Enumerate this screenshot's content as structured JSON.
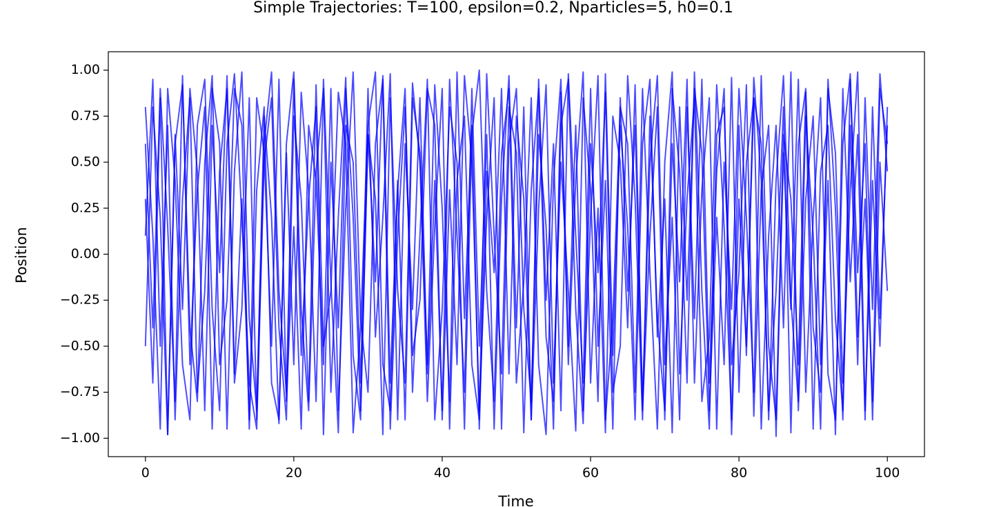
{
  "chart_data": {
    "type": "line",
    "title": "Simple Trajectories: T=100, epsilon=0.2, Nparticles=5, h0=0.1",
    "x_label": "Time",
    "y_label": "Position",
    "xlim": [
      -5,
      105
    ],
    "ylim": [
      -1.1,
      1.1
    ],
    "xticks": [
      0,
      20,
      40,
      60,
      80,
      100
    ],
    "yticks": [
      {
        "value": -1,
        "label": "−1.00"
      },
      {
        "value": -0.75,
        "label": "−0.75"
      },
      {
        "value": -0.5,
        "label": "−0.50"
      },
      {
        "value": -0.25,
        "label": "−0.25"
      },
      {
        "value": 0,
        "label": "0.00"
      },
      {
        "value": 0.25,
        "label": "0.25"
      },
      {
        "value": 0.5,
        "label": "0.50"
      },
      {
        "value": 0.75,
        "label": "0.75"
      },
      {
        "value": 1,
        "label": "1.00"
      }
    ],
    "grid": false,
    "opacity": 0.7,
    "x": [
      0,
      1,
      2,
      3,
      4,
      5,
      6,
      7,
      8,
      9,
      10,
      11,
      12,
      13,
      14,
      15,
      16,
      17,
      18,
      19,
      20,
      21,
      22,
      23,
      24,
      25,
      26,
      27,
      28,
      29,
      30,
      31,
      32,
      33,
      34,
      35,
      36,
      37,
      38,
      39,
      40,
      41,
      42,
      43,
      44,
      45,
      46,
      47,
      48,
      49,
      50,
      51,
      52,
      53,
      54,
      55,
      56,
      57,
      58,
      59,
      60,
      61,
      62,
      63,
      64,
      65,
      66,
      67,
      68,
      69,
      70,
      71,
      72,
      73,
      74,
      75,
      76,
      77,
      78,
      79,
      80,
      81,
      82,
      83,
      84,
      85,
      86,
      87,
      88,
      89,
      90,
      91,
      92,
      93,
      94,
      95,
      96,
      97,
      98,
      99,
      100
    ],
    "series": [
      {
        "color": "#0000ff",
        "values": [
          0.8,
          0.1,
          -0.95,
          0.9,
          0.4,
          -0.6,
          -0.9,
          0.7,
          0.95,
          -0.3,
          -0.85,
          0.6,
          0.98,
          0.2,
          -0.7,
          -0.95,
          0.5,
          0.85,
          -0.4,
          -0.9,
          0.75,
          0.3,
          -0.8,
          0.92,
          -0.5,
          -0.2,
          0.88,
          0.6,
          -0.97,
          -0.4,
          0.7,
          0.99,
          -0.6,
          -0.85,
          0.35,
          0.9,
          -0.75,
          0.1,
          0.95,
          -0.9,
          -0.3,
          0.8,
          0.5,
          -0.95,
          0.65,
          1.0,
          -0.2,
          -0.8,
          0.55,
          0.9,
          -0.7,
          -0.15,
          0.85,
          -0.6,
          -0.98,
          0.4,
          0.95,
          -0.5,
          0.7,
          -0.85,
          0.2,
          0.97,
          -0.9,
          -0.35,
          0.8,
          0.6,
          -0.75,
          0.9,
          -0.1,
          -0.95,
          0.5,
          0.99,
          -0.65,
          0.3,
          0.85,
          -0.8,
          -0.45,
          0.92,
          0.15,
          -0.9,
          0.7,
          -0.55,
          0.96,
          0.4,
          -0.85,
          -0.2,
          0.8,
          -0.97,
          0.6,
          0.9,
          -0.4,
          -0.75,
          0.95,
          0.25,
          -0.9,
          0.7,
          -0.6,
          0.85,
          -0.3,
          0.98,
          0.45
        ]
      },
      {
        "color": "#0000ff",
        "values": [
          0.3,
          -0.7,
          0.85,
          -0.98,
          0.6,
          0.92,
          -0.4,
          -0.8,
          0.5,
          0.97,
          -0.6,
          -0.25,
          0.9,
          0.7,
          -0.95,
          0.35,
          0.8,
          -0.7,
          -0.9,
          0.6,
          0.99,
          -0.3,
          -0.85,
          0.45,
          0.9,
          -0.75,
          0.2,
          0.96,
          -0.55,
          -0.9,
          0.65,
          0.3,
          -0.98,
          0.85,
          -0.2,
          -0.7,
          0.93,
          0.5,
          -0.8,
          0.15,
          0.9,
          -0.95,
          0.4,
          0.75,
          -0.6,
          -0.9,
          0.98,
          0.1,
          -0.65,
          0.8,
          0.55,
          -0.97,
          0.35,
          0.9,
          -0.45,
          -0.8,
          0.7,
          0.95,
          -0.3,
          -0.92,
          0.6,
          -0.1,
          0.88,
          -0.75,
          -0.5,
          0.97,
          0.3,
          -0.9,
          0.75,
          -0.35,
          -0.85,
          0.9,
          0.45,
          -0.7,
          0.99,
          -0.2,
          -0.95,
          0.65,
          0.8,
          -0.6,
          -0.1,
          0.92,
          -0.88,
          0.35,
          0.7,
          -0.99,
          0.55,
          -0.3,
          0.95,
          -0.75,
          0.2,
          0.85,
          -0.65,
          -0.9,
          0.6,
          0.98,
          -0.45,
          0.3,
          -0.8,
          0.9,
          0.6
        ]
      },
      {
        "color": "#0000ff",
        "values": [
          0.1,
          0.95,
          -0.5,
          0.7,
          -0.9,
          0.3,
          0.85,
          -0.75,
          -0.2,
          0.9,
          0.6,
          -0.95,
          0.45,
          0.99,
          -0.35,
          -0.85,
          0.75,
          0.2,
          -0.92,
          0.55,
          -0.6,
          0.88,
          0.35,
          -0.8,
          0.95,
          -0.15,
          -0.97,
          0.7,
          0.5,
          -0.7,
          0.9,
          -0.45,
          0.2,
          0.98,
          -0.9,
          0.6,
          -0.3,
          0.85,
          -0.65,
          0.4,
          -0.85,
          0.95,
          0.1,
          -0.75,
          0.9,
          -0.5,
          0.65,
          -0.95,
          0.3,
          0.97,
          -0.4,
          0.8,
          -0.9,
          0.25,
          0.92,
          -0.7,
          0.5,
          -0.2,
          -0.96,
          0.85,
          0.35,
          -0.8,
          0.98,
          -0.55,
          0.7,
          0.15,
          -0.9,
          0.6,
          0.95,
          -0.45,
          0.3,
          -0.97,
          0.8,
          -0.25,
          0.9,
          0.55,
          -0.85,
          0.2,
          -0.6,
          0.96,
          -0.75,
          0.5,
          0.85,
          -0.95,
          0.1,
          0.7,
          -0.4,
          0.99,
          -0.85,
          0.3,
          0.75,
          -0.6,
          0.4,
          -0.98,
          0.9,
          -0.15,
          0.65,
          -0.9,
          0.8,
          -0.35,
          0.7
        ]
      },
      {
        "color": "#0000ff",
        "values": [
          -0.5,
          0.8,
          0.2,
          -0.98,
          0.65,
          -0.3,
          0.9,
          0.45,
          -0.85,
          0.7,
          -0.1,
          0.97,
          -0.65,
          0.3,
          -0.9,
          0.85,
          0.55,
          -0.5,
          0.95,
          -0.8,
          0.15,
          -0.95,
          0.7,
          0.4,
          -0.6,
          0.9,
          -0.85,
          0.25,
          0.99,
          -0.35,
          -0.75,
          0.6,
          0.95,
          -0.95,
          0.1,
          0.8,
          -0.55,
          -0.25,
          0.9,
          0.7,
          -0.9,
          0.35,
          -0.6,
          0.97,
          0.5,
          -0.85,
          0.2,
          0.85,
          -0.95,
          0.6,
          0.9,
          -0.3,
          -0.8,
          0.65,
          0.15,
          -0.95,
          0.88,
          -0.6,
          0.4,
          0.99,
          -0.7,
          0.25,
          -0.97,
          0.75,
          0.5,
          -0.4,
          0.92,
          -0.85,
          0.1,
          0.8,
          -0.9,
          0.6,
          -0.15,
          0.95,
          -0.7,
          0.35,
          0.85,
          -0.95,
          0.5,
          -0.3,
          0.9,
          0.2,
          -0.75,
          0.97,
          -0.5,
          -0.9,
          0.65,
          0.3,
          -0.6,
          0.88,
          -0.95,
          0.45,
          0.7,
          -0.35,
          -0.85,
          0.95,
          -0.1,
          0.6,
          -0.9,
          0.5,
          -0.2
        ]
      },
      {
        "color": "#0000ff",
        "values": [
          0.6,
          -0.4,
          0.9,
          0.15,
          -0.8,
          0.97,
          -0.6,
          0.35,
          0.8,
          -0.95,
          0.45,
          0.9,
          -0.7,
          -0.3,
          0.85,
          -0.9,
          0.6,
          0.99,
          -0.2,
          -0.75,
          0.95,
          -0.55,
          0.3,
          0.8,
          -0.98,
          0.5,
          -0.4,
          0.9,
          0.2,
          -0.85,
          0.65,
          -0.15,
          0.97,
          -0.7,
          0.4,
          -0.9,
          0.85,
          0.55,
          -0.6,
          0.92,
          0.25,
          -0.8,
          0.99,
          -0.35,
          0.7,
          -0.95,
          0.45,
          -0.1,
          0.9,
          -0.65,
          0.75,
          0.3,
          -0.9,
          0.95,
          -0.25,
          0.6,
          -0.85,
          0.98,
          0.1,
          -0.7,
          0.9,
          -0.5,
          0.4,
          -0.95,
          0.85,
          -0.2,
          0.7,
          -0.8,
          0.5,
          0.97,
          -0.6,
          0.2,
          -0.9,
          0.8,
          -0.35,
          0.95,
          -0.7,
          0.45,
          0.9,
          -0.98,
          0.3,
          -0.5,
          0.85,
          0.6,
          -0.9,
          0.4,
          0.97,
          -0.25,
          -0.8,
          0.75,
          0.1,
          -0.95,
          0.9,
          0.55,
          -0.7,
          0.35,
          0.99,
          -0.85,
          0.4,
          -0.5,
          0.8
        ]
      }
    ]
  }
}
